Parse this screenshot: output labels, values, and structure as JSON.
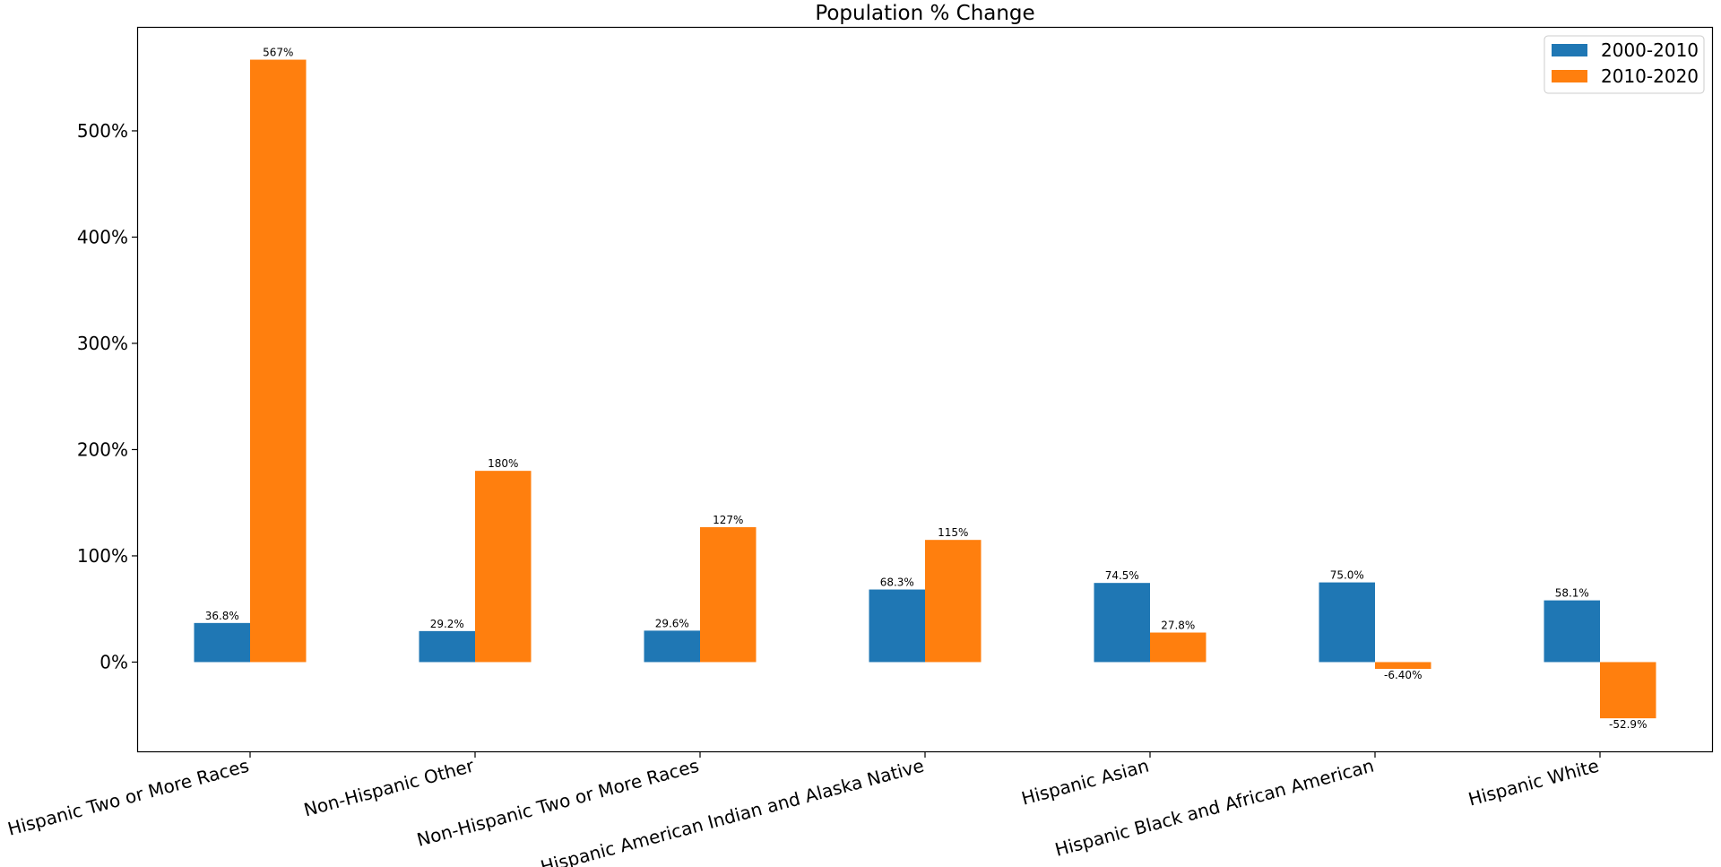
{
  "chart_data": {
    "type": "bar",
    "title": "Population % Change",
    "xlabel": "",
    "ylabel": "",
    "categories": [
      "Hispanic Two or More Races",
      "Non-Hispanic Other",
      "Non-Hispanic Two or More Races",
      "Hispanic American Indian and Alaska Native",
      "Hispanic Asian",
      "Hispanic Black and African American",
      "Hispanic White"
    ],
    "series": [
      {
        "name": "2000-2010",
        "color": "#1f77b4",
        "values": [
          36.8,
          29.2,
          29.6,
          68.3,
          74.5,
          75.0,
          58.1
        ],
        "labels": [
          "36.8%",
          "29.2%",
          "29.6%",
          "68.3%",
          "74.5%",
          "75.0%",
          "58.1%"
        ]
      },
      {
        "name": "2010-2020",
        "color": "#ff7f0e",
        "values": [
          567,
          180,
          127,
          115,
          27.8,
          -6.4,
          -52.9
        ],
        "labels": [
          "567%",
          "180%",
          "127%",
          "115%",
          "27.8%",
          "-6.40%",
          "-52.9%"
        ]
      }
    ],
    "ylim": [
      -84,
      597
    ],
    "yticks": [
      0,
      100,
      200,
      300,
      400,
      500
    ],
    "ytick_labels": [
      "0%",
      "100%",
      "200%",
      "300%",
      "400%",
      "500%"
    ],
    "grid": false,
    "legend_position": "top-right"
  }
}
